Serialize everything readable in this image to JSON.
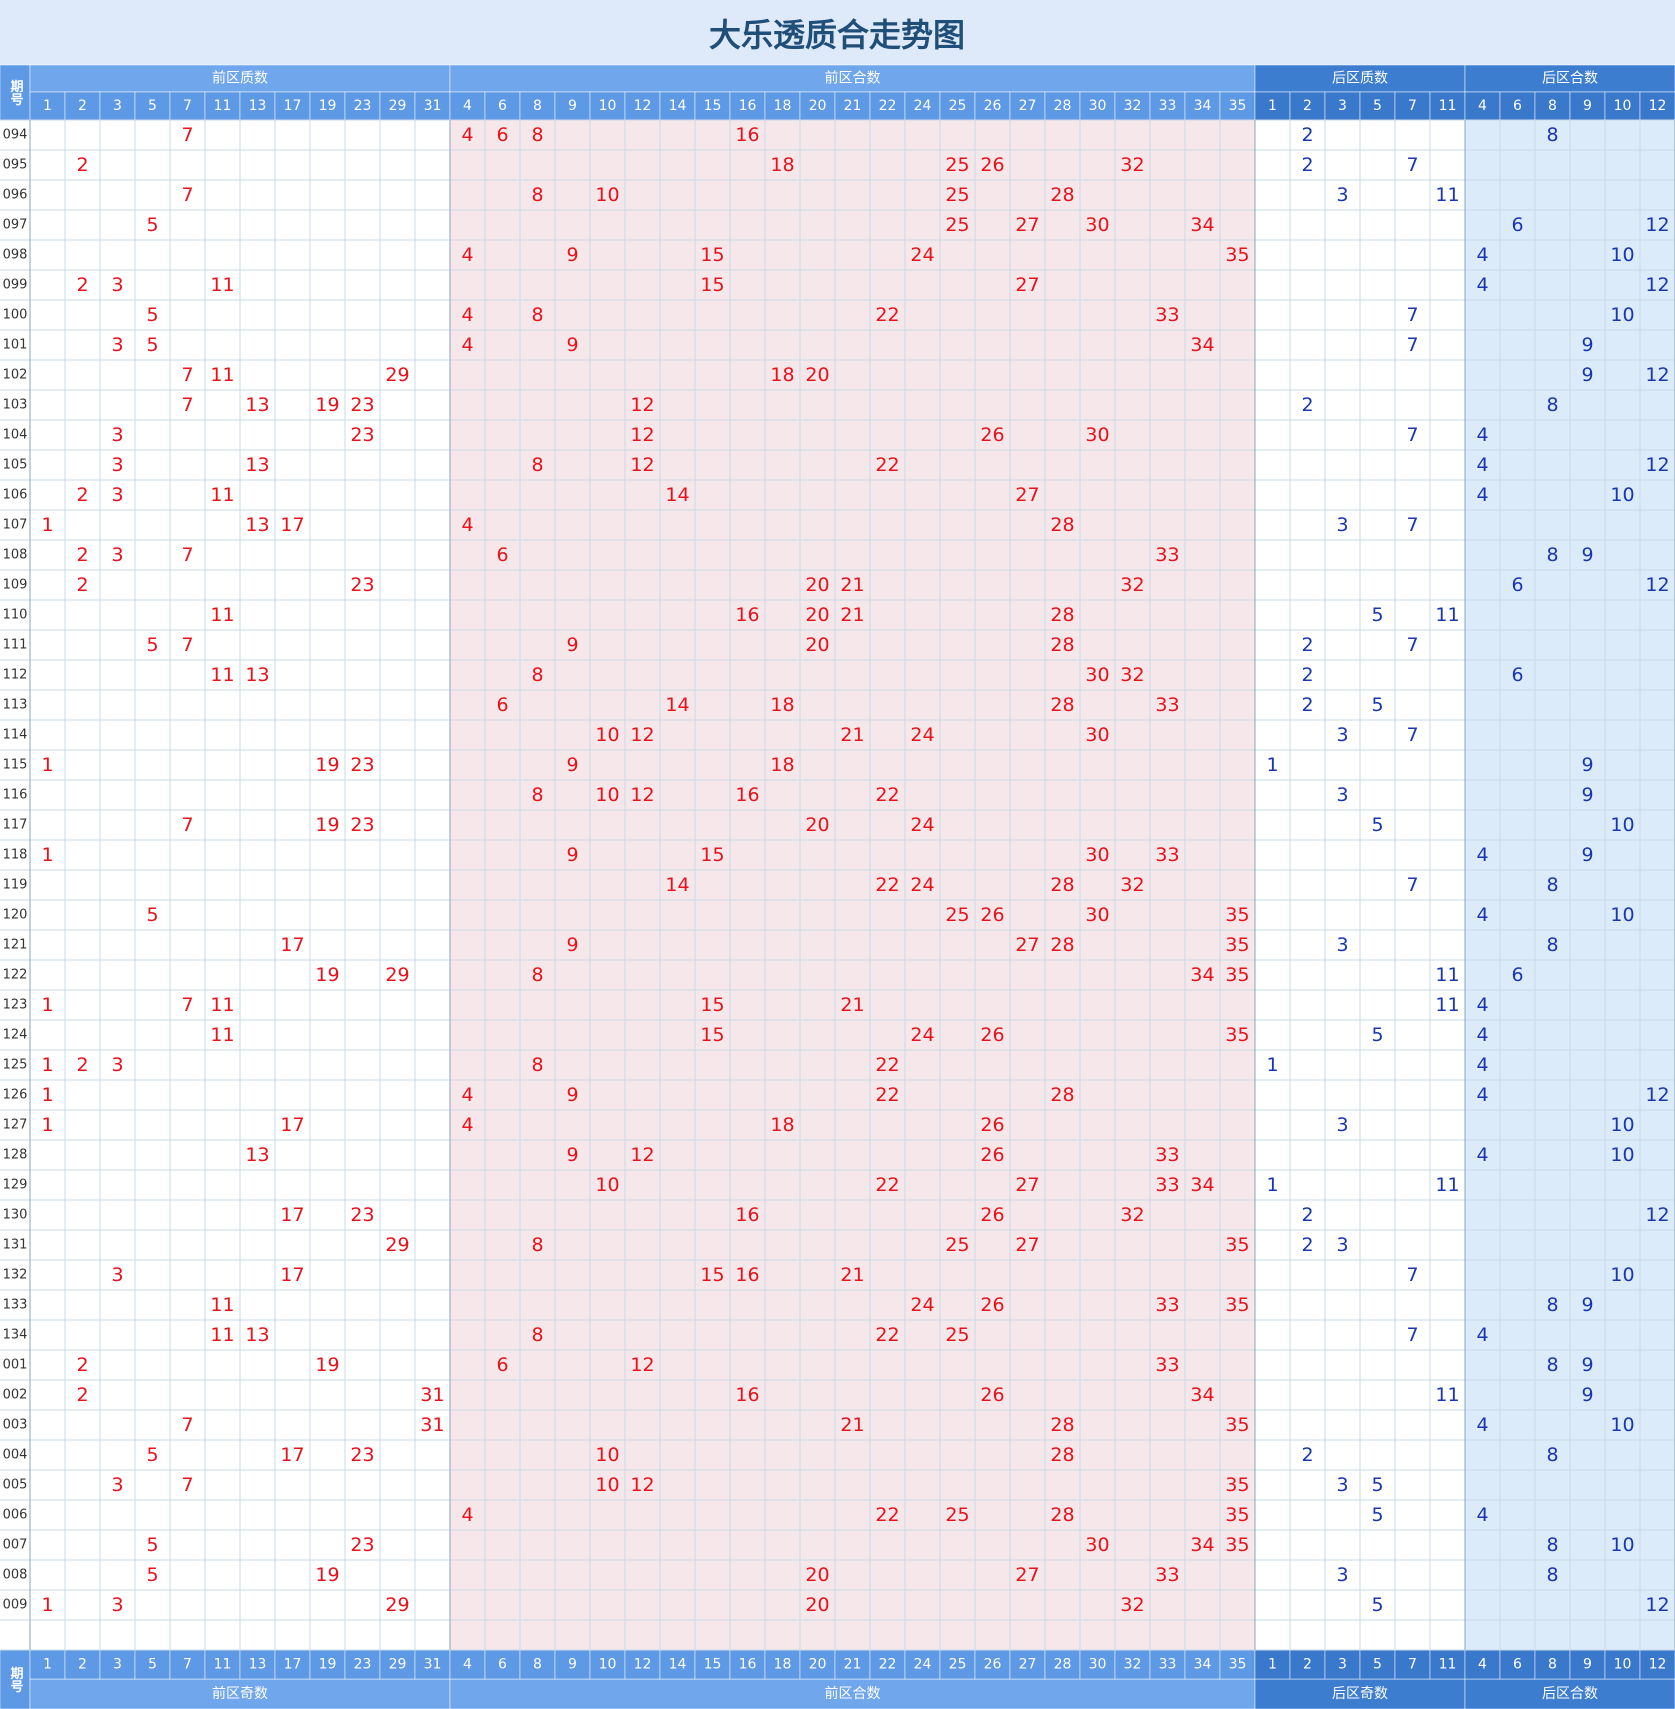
{
  "title": "大乐透质合走势图",
  "header": {
    "issue_label": "期号",
    "groups": [
      {
        "label": "前区质数",
        "numbers": [
          1,
          2,
          3,
          5,
          7,
          11,
          13,
          17,
          19,
          23,
          29,
          31
        ]
      },
      {
        "label": "前区合数",
        "numbers": [
          4,
          6,
          8,
          9,
          10,
          12,
          14,
          15,
          16,
          18,
          20,
          21,
          22,
          24,
          25,
          26,
          27,
          28,
          30,
          32,
          33,
          34,
          35
        ]
      },
      {
        "label": "后区质数",
        "numbers": [
          1,
          2,
          3,
          5,
          7,
          11
        ]
      },
      {
        "label": "后区合数",
        "numbers": [
          4,
          6,
          8,
          9,
          10,
          12
        ]
      }
    ],
    "footer_groups": [
      "前区奇数",
      "前区合数",
      "后区奇数",
      "后区合数"
    ]
  },
  "rows": [
    {
      "issue": "094",
      "front": [
        7,
        4,
        6,
        8,
        16
      ],
      "back": [
        2,
        8
      ]
    },
    {
      "issue": "095",
      "front": [
        2,
        18,
        25,
        26,
        32
      ],
      "back": [
        2,
        7
      ]
    },
    {
      "issue": "096",
      "front": [
        7,
        8,
        10,
        25,
        28
      ],
      "back": [
        3,
        11
      ]
    },
    {
      "issue": "097",
      "front": [
        5,
        25,
        27,
        30,
        34
      ],
      "back": [
        6,
        12
      ]
    },
    {
      "issue": "098",
      "front": [
        4,
        9,
        15,
        24,
        35
      ],
      "back": [
        4,
        10
      ]
    },
    {
      "issue": "099",
      "front": [
        2,
        3,
        11,
        15,
        27
      ],
      "back": [
        4,
        12
      ]
    },
    {
      "issue": "100",
      "front": [
        5,
        4,
        8,
        22,
        33
      ],
      "back": [
        7,
        10
      ]
    },
    {
      "issue": "101",
      "front": [
        3,
        5,
        4,
        9,
        34
      ],
      "back": [
        7,
        9
      ]
    },
    {
      "issue": "102",
      "front": [
        7,
        11,
        29,
        18,
        20
      ],
      "back": [
        9,
        12
      ]
    },
    {
      "issue": "103",
      "front": [
        7,
        13,
        19,
        23,
        12
      ],
      "back": [
        2,
        8
      ]
    },
    {
      "issue": "104",
      "front": [
        3,
        23,
        12,
        26,
        30
      ],
      "back": [
        7,
        4
      ]
    },
    {
      "issue": "105",
      "front": [
        3,
        13,
        8,
        12,
        22
      ],
      "back": [
        4,
        12
      ]
    },
    {
      "issue": "106",
      "front": [
        2,
        3,
        11,
        14,
        27
      ],
      "back": [
        4,
        10
      ]
    },
    {
      "issue": "107",
      "front": [
        1,
        13,
        17,
        4,
        28
      ],
      "back": [
        3,
        7
      ]
    },
    {
      "issue": "108",
      "front": [
        2,
        3,
        7,
        6,
        33
      ],
      "back": [
        8,
        9
      ]
    },
    {
      "issue": "109",
      "front": [
        2,
        23,
        20,
        21,
        32
      ],
      "back": [
        6,
        12
      ]
    },
    {
      "issue": "110",
      "front": [
        11,
        16,
        20,
        21,
        28
      ],
      "back": [
        5,
        11
      ]
    },
    {
      "issue": "111",
      "front": [
        5,
        7,
        9,
        20,
        28
      ],
      "back": [
        2,
        7
      ]
    },
    {
      "issue": "112",
      "front": [
        11,
        13,
        8,
        30,
        32
      ],
      "back": [
        2,
        6
      ]
    },
    {
      "issue": "113",
      "front": [
        6,
        14,
        18,
        28,
        33
      ],
      "back": [
        2,
        5
      ]
    },
    {
      "issue": "114",
      "front": [
        10,
        12,
        21,
        24,
        30
      ],
      "back": [
        3,
        7
      ]
    },
    {
      "issue": "115",
      "front": [
        1,
        19,
        23,
        9,
        18
      ],
      "back": [
        1,
        9
      ]
    },
    {
      "issue": "116",
      "front": [
        8,
        10,
        12,
        16,
        22
      ],
      "back": [
        3,
        9
      ]
    },
    {
      "issue": "117",
      "front": [
        7,
        19,
        23,
        20,
        24
      ],
      "back": [
        5,
        10
      ]
    },
    {
      "issue": "118",
      "front": [
        1,
        9,
        15,
        30,
        33
      ],
      "back": [
        4,
        9
      ]
    },
    {
      "issue": "119",
      "front": [
        14,
        22,
        24,
        28,
        32
      ],
      "back": [
        7,
        8
      ]
    },
    {
      "issue": "120",
      "front": [
        5,
        25,
        26,
        30,
        35
      ],
      "back": [
        4,
        10
      ]
    },
    {
      "issue": "121",
      "front": [
        17,
        9,
        27,
        28,
        35
      ],
      "back": [
        3,
        8
      ]
    },
    {
      "issue": "122",
      "front": [
        19,
        29,
        8,
        34,
        35
      ],
      "back": [
        11,
        6
      ]
    },
    {
      "issue": "123",
      "front": [
        1,
        7,
        11,
        15,
        21
      ],
      "back": [
        11,
        4
      ]
    },
    {
      "issue": "124",
      "front": [
        11,
        15,
        24,
        26,
        35
      ],
      "back": [
        5,
        4
      ]
    },
    {
      "issue": "125",
      "front": [
        1,
        2,
        3,
        8,
        22
      ],
      "back": [
        1,
        4
      ]
    },
    {
      "issue": "126",
      "front": [
        1,
        4,
        9,
        22,
        28
      ],
      "back": [
        4,
        12
      ]
    },
    {
      "issue": "127",
      "front": [
        1,
        17,
        4,
        18,
        26
      ],
      "back": [
        3,
        10
      ]
    },
    {
      "issue": "128",
      "front": [
        13,
        9,
        12,
        26,
        33
      ],
      "back": [
        4,
        10
      ]
    },
    {
      "issue": "129",
      "front": [
        10,
        22,
        27,
        33,
        34
      ],
      "back": [
        1,
        11
      ]
    },
    {
      "issue": "130",
      "front": [
        17,
        23,
        16,
        26,
        32
      ],
      "back": [
        2,
        12
      ]
    },
    {
      "issue": "131",
      "front": [
        29,
        8,
        25,
        27,
        35
      ],
      "back": [
        2,
        3
      ]
    },
    {
      "issue": "132",
      "front": [
        3,
        17,
        15,
        16,
        21
      ],
      "back": [
        7,
        10
      ]
    },
    {
      "issue": "133",
      "front": [
        11,
        24,
        26,
        33,
        35
      ],
      "back": [
        8,
        9
      ]
    },
    {
      "issue": "134",
      "front": [
        11,
        13,
        8,
        22,
        25
      ],
      "back": [
        7,
        4
      ]
    },
    {
      "issue": "001",
      "front": [
        2,
        19,
        6,
        12,
        33
      ],
      "back": [
        8,
        9
      ]
    },
    {
      "issue": "002",
      "front": [
        2,
        31,
        16,
        26,
        34
      ],
      "back": [
        11,
        9
      ]
    },
    {
      "issue": "003",
      "front": [
        7,
        31,
        21,
        28,
        35
      ],
      "back": [
        4,
        10
      ]
    },
    {
      "issue": "004",
      "front": [
        5,
        17,
        23,
        10,
        28
      ],
      "back": [
        2,
        8
      ]
    },
    {
      "issue": "005",
      "front": [
        3,
        7,
        10,
        12,
        35
      ],
      "back": [
        3,
        5
      ]
    },
    {
      "issue": "006",
      "front": [
        4,
        22,
        25,
        28,
        35
      ],
      "back": [
        5,
        4
      ]
    },
    {
      "issue": "007",
      "front": [
        5,
        23,
        30,
        34,
        35
      ],
      "back": [
        8,
        10
      ]
    },
    {
      "issue": "008",
      "front": [
        5,
        19,
        20,
        27,
        33
      ],
      "back": [
        3,
        8
      ]
    },
    {
      "issue": "009",
      "front": [
        1,
        3,
        29,
        20,
        32
      ],
      "back": [
        5,
        12
      ]
    }
  ]
}
